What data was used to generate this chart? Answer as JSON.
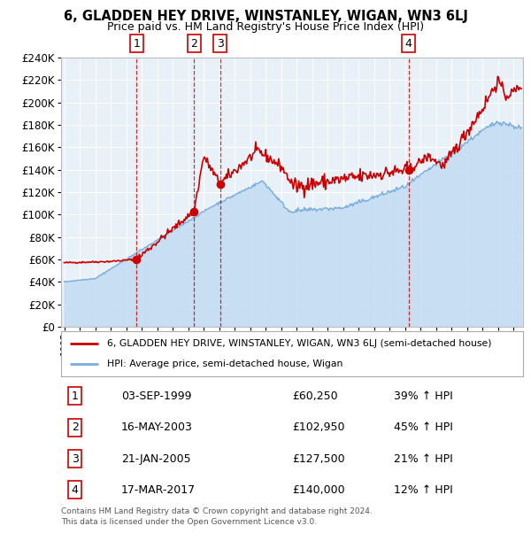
{
  "title": "6, GLADDEN HEY DRIVE, WINSTANLEY, WIGAN, WN3 6LJ",
  "subtitle": "Price paid vs. HM Land Registry's House Price Index (HPI)",
  "transactions": [
    {
      "num": 1,
      "date": "03-SEP-1999",
      "price_str": "£60,250",
      "year": 1999.67,
      "price": 60250,
      "pct": "39% ↑ HPI"
    },
    {
      "num": 2,
      "date": "16-MAY-2003",
      "price_str": "£102,950",
      "year": 2003.37,
      "price": 102950,
      "pct": "45% ↑ HPI"
    },
    {
      "num": 3,
      "date": "21-JAN-2005",
      "price_str": "£127,500",
      "year": 2005.05,
      "price": 127500,
      "pct": "21% ↑ HPI"
    },
    {
      "num": 4,
      "date": "17-MAR-2017",
      "price_str": "£140,000",
      "year": 2017.21,
      "price": 140000,
      "pct": "12% ↑ HPI"
    }
  ],
  "legend_line1": "6, GLADDEN HEY DRIVE, WINSTANLEY, WIGAN, WN3 6LJ (semi-detached house)",
  "legend_line2": "HPI: Average price, semi-detached house, Wigan",
  "footer": "Contains HM Land Registry data © Crown copyright and database right 2024.\nThis data is licensed under the Open Government Licence v3.0.",
  "price_color": "#cc0000",
  "hpi_color": "#7aacdc",
  "hpi_fill_color": "#c5ddf2",
  "grid_color": "#ffffff",
  "plot_bg": "#e8f0f8",
  "ylim": [
    0,
    240000
  ],
  "yticks": [
    0,
    20000,
    40000,
    60000,
    80000,
    100000,
    120000,
    140000,
    160000,
    180000,
    200000,
    220000,
    240000
  ],
  "xmin": 1994.8,
  "xmax": 2024.6
}
